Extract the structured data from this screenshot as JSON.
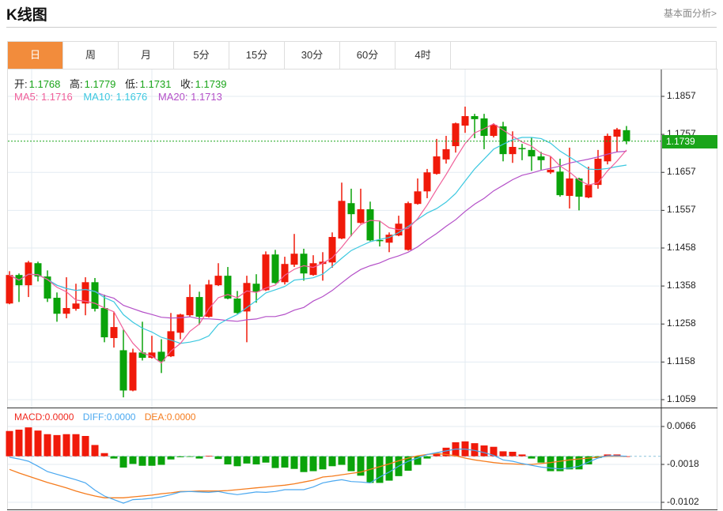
{
  "header": {
    "title": "K线图",
    "more_link": "基本面分析>"
  },
  "tabs": [
    {
      "label": "日",
      "active": true
    },
    {
      "label": "周",
      "active": false
    },
    {
      "label": "月",
      "active": false
    },
    {
      "label": "5分",
      "active": false
    },
    {
      "label": "15分",
      "active": false
    },
    {
      "label": "30分",
      "active": false
    },
    {
      "label": "60分",
      "active": false
    },
    {
      "label": "4时",
      "active": false
    }
  ],
  "ohlc_legend": {
    "open_label": "开:",
    "open": "1.1768",
    "high_label": "高:",
    "high": "1.1779",
    "low_label": "低:",
    "low": "1.1731",
    "close_label": "收:",
    "close": "1.1739"
  },
  "ma_legend": {
    "ma5": "MA5: 1.1716",
    "ma10": "MA10: 1.1676",
    "ma20": "MA20: 1.1713"
  },
  "macd_legend": {
    "macd": "MACD:0.0000",
    "diff": "DIFF:0.0000",
    "dea": "DEA:0.0000"
  },
  "current_price": "1.1739",
  "colors": {
    "up": "#f01a0a",
    "down": "#0aa30a",
    "ma5": "#f0609a",
    "ma10": "#3cc8e0",
    "ma20": "#b450c8",
    "diff": "#4aa8f0",
    "dea": "#f57c1e",
    "accent": "#f28c3c"
  },
  "chart_data": {
    "type": "candlestick",
    "price_axis": {
      "ticks": [
        "1.1857",
        "1.1757",
        "1.1657",
        "1.1557",
        "1.1458",
        "1.1358",
        "1.1258",
        "1.1158",
        "1.1059"
      ],
      "range": [
        1.1059,
        1.1857
      ]
    },
    "macd_axis": {
      "ticks": [
        "0.0066",
        "-0.0018",
        "-0.0102"
      ],
      "range": [
        -0.0102,
        0.0066
      ]
    },
    "candles": [
      [
        1.1312,
        1.1397,
        1.131,
        1.1387
      ],
      [
        1.1387,
        1.1391,
        1.1316,
        1.136
      ],
      [
        1.136,
        1.1424,
        1.1329,
        1.142
      ],
      [
        1.1418,
        1.1422,
        1.137,
        1.1383
      ],
      [
        1.1383,
        1.1399,
        1.1316,
        1.1325
      ],
      [
        1.1327,
        1.1341,
        1.1264,
        1.1285
      ],
      [
        1.1285,
        1.1381,
        1.1273,
        1.13
      ],
      [
        1.1298,
        1.1364,
        1.1293,
        1.1312
      ],
      [
        1.1312,
        1.1381,
        1.1281,
        1.1368
      ],
      [
        1.1368,
        1.1379,
        1.1291,
        1.1298
      ],
      [
        1.13,
        1.1335,
        1.121,
        1.1223
      ],
      [
        1.1221,
        1.1289,
        1.1196,
        1.125
      ],
      [
        1.1189,
        1.1243,
        1.1065,
        1.1083
      ],
      [
        1.1083,
        1.1193,
        1.1081,
        1.1183
      ],
      [
        1.1183,
        1.1264,
        1.1162,
        1.1169
      ],
      [
        1.1169,
        1.1227,
        1.1167,
        1.1183
      ],
      [
        1.1185,
        1.1218,
        1.1129,
        1.116
      ],
      [
        1.1173,
        1.1287,
        1.1171,
        1.1239
      ],
      [
        1.1235,
        1.1285,
        1.1218,
        1.1283
      ],
      [
        1.1281,
        1.1362,
        1.1277,
        1.1329
      ],
      [
        1.1329,
        1.1343,
        1.1256,
        1.1277
      ],
      [
        1.1277,
        1.1374,
        1.1275,
        1.1362
      ],
      [
        1.136,
        1.1418,
        1.1358,
        1.1385
      ],
      [
        1.1385,
        1.1408,
        1.1323,
        1.1325
      ],
      [
        1.1325,
        1.1345,
        1.1285,
        1.1287
      ],
      [
        1.1291,
        1.1385,
        1.121,
        1.1366
      ],
      [
        1.1364,
        1.1389,
        1.1314,
        1.1343
      ],
      [
        1.1347,
        1.1449,
        1.1345,
        1.1441
      ],
      [
        1.1441,
        1.1453,
        1.1364,
        1.1366
      ],
      [
        1.1368,
        1.1435,
        1.1362,
        1.1416
      ],
      [
        1.1414,
        1.1495,
        1.1408,
        1.1443
      ],
      [
        1.1443,
        1.1456,
        1.1372,
        1.1391
      ],
      [
        1.1387,
        1.1439,
        1.1385,
        1.1418
      ],
      [
        1.1416,
        1.1447,
        1.1372,
        1.1422
      ],
      [
        1.142,
        1.1499,
        1.1406,
        1.1487
      ],
      [
        1.1483,
        1.163,
        1.1481,
        1.1582
      ],
      [
        1.1576,
        1.1614,
        1.1489,
        1.1547
      ],
      [
        1.1524,
        1.1614,
        1.1522,
        1.156
      ],
      [
        1.156,
        1.158,
        1.1476,
        1.1478
      ],
      [
        1.1479,
        1.153,
        1.1462,
        1.1478
      ],
      [
        1.1472,
        1.1499,
        1.1447,
        1.1493
      ],
      [
        1.1491,
        1.1543,
        1.1489,
        1.1522
      ],
      [
        1.1453,
        1.158,
        1.1451,
        1.1576
      ],
      [
        1.1574,
        1.1641,
        1.1572,
        1.1607
      ],
      [
        1.1607,
        1.1666,
        1.1589,
        1.1657
      ],
      [
        1.1653,
        1.1745,
        1.1651,
        1.1699
      ],
      [
        1.1691,
        1.1753,
        1.168,
        1.1718
      ],
      [
        1.1726,
        1.1788,
        1.1709,
        1.1786
      ],
      [
        1.178,
        1.183,
        1.1761,
        1.1805
      ],
      [
        1.1805,
        1.1811,
        1.1747,
        1.1797
      ],
      [
        1.1799,
        1.1811,
        1.1718,
        1.1753
      ],
      [
        1.1753,
        1.1786,
        1.1749,
        1.1782
      ],
      [
        1.1778,
        1.179,
        1.1686,
        1.1705
      ],
      [
        1.1705,
        1.1765,
        1.1682,
        1.1724
      ],
      [
        1.1721,
        1.1732,
        1.1689,
        1.172
      ],
      [
        1.1716,
        1.1749,
        1.1661,
        1.1699
      ],
      [
        1.1699,
        1.1711,
        1.1664,
        1.1689
      ],
      [
        1.1657,
        1.1699,
        1.1653,
        1.1664
      ],
      [
        1.1659,
        1.1693,
        1.1593,
        1.1597
      ],
      [
        1.1595,
        1.1722,
        1.1562,
        1.1641
      ],
      [
        1.1641,
        1.1643,
        1.1557,
        1.1593
      ],
      [
        1.1591,
        1.1672,
        1.1589,
        1.1624
      ],
      [
        1.1624,
        1.1716,
        1.1614,
        1.1693
      ],
      [
        1.1686,
        1.1759,
        1.1678,
        1.1753
      ],
      [
        1.1751,
        1.1774,
        1.1711,
        1.177
      ],
      [
        1.1768,
        1.1779,
        1.1731,
        1.1739
      ]
    ],
    "macd_hist": [
      0.0056,
      0.0059,
      0.0064,
      0.0057,
      0.0049,
      0.0047,
      0.0049,
      0.0049,
      0.0045,
      0.0025,
      0.0007,
      -0.0005,
      -0.0025,
      -0.0017,
      -0.0021,
      -0.0021,
      -0.0019,
      -0.0007,
      -0.0002,
      -0.0001,
      -0.0005,
      0.0001,
      -0.0006,
      -0.0018,
      -0.0022,
      -0.0016,
      -0.0018,
      -0.0014,
      -0.0026,
      -0.0025,
      -0.0028,
      -0.0035,
      -0.0033,
      -0.0029,
      -0.0022,
      -0.0019,
      -0.0033,
      -0.0043,
      -0.0059,
      -0.0059,
      -0.0054,
      -0.0044,
      -0.0032,
      -0.0019,
      -0.0005,
      0.0007,
      0.0019,
      0.0031,
      0.0033,
      0.0029,
      0.0024,
      0.0021,
      0.0011,
      0.001,
      0.0004,
      -0.0005,
      -0.0014,
      -0.0033,
      -0.0033,
      -0.0029,
      -0.0029,
      -0.0018,
      -0.0004,
      0.0004,
      0.0004,
      0.0
    ],
    "diff": [
      -0.0002,
      -0.0006,
      -0.0011,
      -0.0022,
      -0.0034,
      -0.004,
      -0.0046,
      -0.0052,
      -0.0059,
      -0.0075,
      -0.0088,
      -0.0096,
      -0.0104,
      -0.0096,
      -0.0095,
      -0.0093,
      -0.009,
      -0.0085,
      -0.0079,
      -0.0078,
      -0.0079,
      -0.008,
      -0.0078,
      -0.0082,
      -0.0085,
      -0.0082,
      -0.0079,
      -0.008,
      -0.0078,
      -0.0074,
      -0.0074,
      -0.0074,
      -0.0068,
      -0.0059,
      -0.0055,
      -0.0052,
      -0.0056,
      -0.0057,
      -0.0059,
      -0.0046,
      -0.0035,
      -0.0022,
      -0.0011,
      -0.0004,
      0.0004,
      0.0008,
      0.0012,
      0.0016,
      0.0016,
      0.0013,
      0.0008,
      0.0002,
      -0.0008,
      -0.0011,
      -0.0016,
      -0.002,
      -0.0024,
      -0.0026,
      -0.0028,
      -0.0026,
      -0.0022,
      -0.0013,
      -0.0004,
      0.0001,
      0.0001,
      0.0
    ],
    "dea": [
      -0.0029,
      -0.0037,
      -0.0044,
      -0.0051,
      -0.0058,
      -0.0064,
      -0.007,
      -0.0077,
      -0.0083,
      -0.0088,
      -0.0092,
      -0.0092,
      -0.0092,
      -0.009,
      -0.0088,
      -0.0086,
      -0.0083,
      -0.0081,
      -0.0078,
      -0.0078,
      -0.0077,
      -0.0077,
      -0.0077,
      -0.0076,
      -0.0074,
      -0.0072,
      -0.007,
      -0.0068,
      -0.0066,
      -0.0064,
      -0.0061,
      -0.0057,
      -0.0053,
      -0.0046,
      -0.0044,
      -0.0041,
      -0.0038,
      -0.0035,
      -0.0029,
      -0.0023,
      -0.0017,
      -0.001,
      -0.0004,
      0.0001,
      0.0004,
      0.0006,
      0.0004,
      0.0001,
      -0.0004,
      -0.0008,
      -0.0011,
      -0.0014,
      -0.0016,
      -0.0017,
      -0.0018,
      -0.0018,
      -0.0016,
      -0.0014,
      -0.0011,
      -0.0008,
      -0.0006,
      -0.0004,
      -0.0002,
      0.0,
      0.0,
      0.0
    ]
  }
}
